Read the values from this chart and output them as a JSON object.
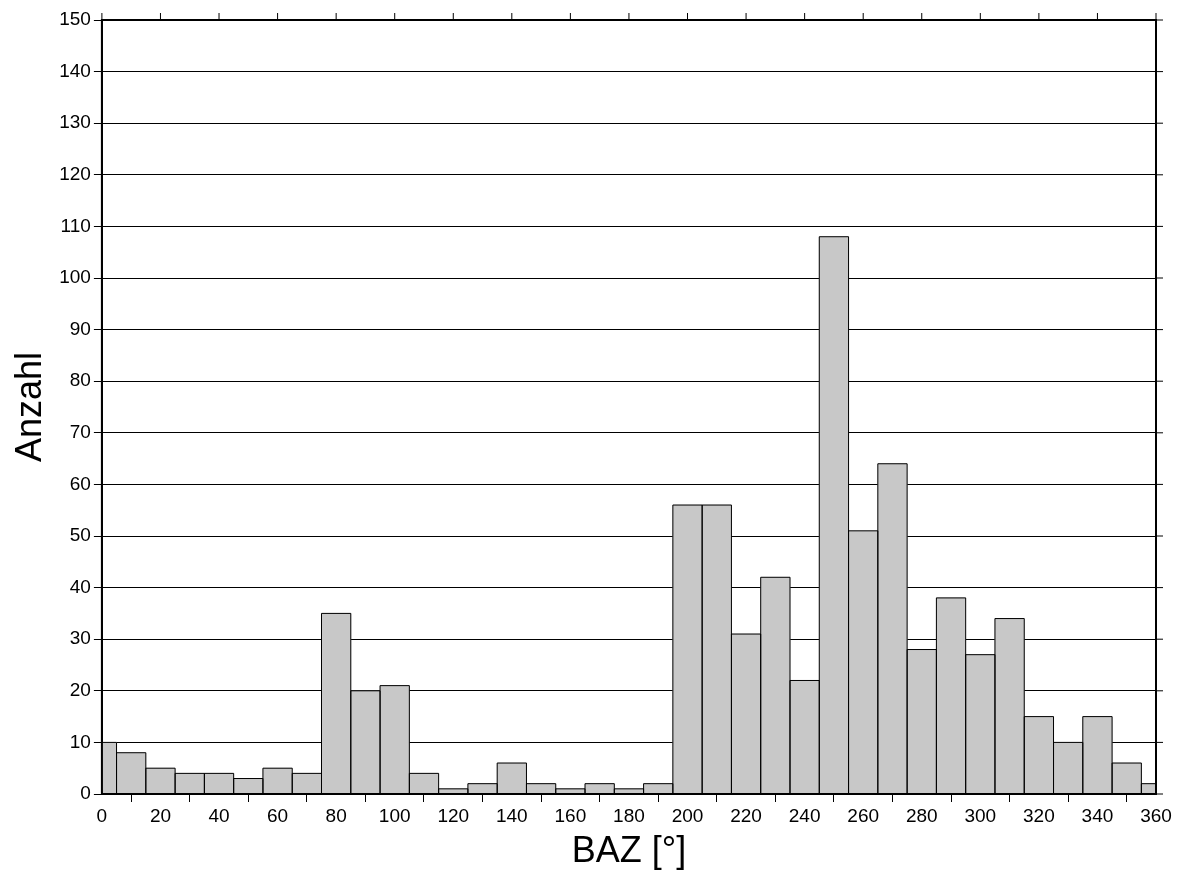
{
  "chart_data": {
    "type": "histogram",
    "xlabel": "BAZ [°]",
    "ylabel": "Anzahl",
    "color": "#c8c8c8",
    "bins": [
      0,
      5,
      15,
      25,
      35,
      45,
      55,
      65,
      75,
      85,
      95,
      105,
      115,
      125,
      135,
      145,
      155,
      165,
      175,
      185,
      195,
      205,
      215,
      225,
      235,
      245,
      255,
      265,
      275,
      285,
      295,
      305,
      315,
      325,
      335,
      345,
      355,
      360
    ],
    "values": [
      10,
      8,
      5,
      4,
      4,
      3,
      5,
      4,
      35,
      20,
      21,
      4,
      1,
      2,
      6,
      2,
      1,
      2,
      1,
      2,
      56,
      56,
      31,
      42,
      22,
      108,
      51,
      64,
      28,
      38,
      27,
      34,
      15,
      10,
      15,
      6,
      2
    ],
    "xlim": [
      0,
      360
    ],
    "xticks": [
      0,
      20,
      40,
      60,
      80,
      100,
      120,
      140,
      160,
      180,
      200,
      220,
      240,
      260,
      280,
      300,
      320,
      340,
      360
    ],
    "ylim": [
      0,
      150
    ],
    "yticks": [
      0,
      10,
      20,
      30,
      40,
      50,
      60,
      70,
      80,
      90,
      100,
      110,
      120,
      130,
      140,
      150
    ],
    "grid": "y",
    "legend": false
  }
}
